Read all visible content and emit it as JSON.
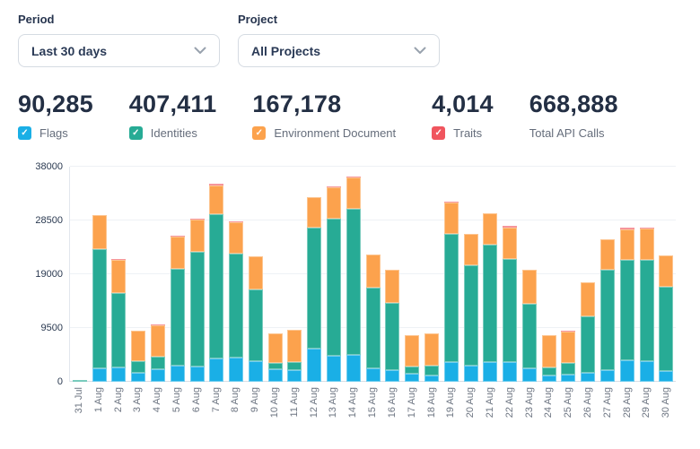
{
  "controls": {
    "period": {
      "label": "Period",
      "value": "Last 30 days"
    },
    "project": {
      "label": "Project",
      "value": "All Projects"
    }
  },
  "stats": [
    {
      "value": "90,285",
      "label": "Flags",
      "checkbox": true,
      "checked": true,
      "color": "#1aafe6"
    },
    {
      "value": "407,411",
      "label": "Identities",
      "checkbox": true,
      "checked": true,
      "color": "#27ab95"
    },
    {
      "value": "167,178",
      "label": "Environment Document",
      "checkbox": true,
      "checked": true,
      "color": "#fca24d"
    },
    {
      "value": "4,014",
      "label": "Traits",
      "checkbox": true,
      "checked": true,
      "color": "#f0555e"
    },
    {
      "value": "668,888",
      "label": "Total API Calls",
      "checkbox": false
    }
  ],
  "icons": {
    "checkmark": "✓",
    "chevron_down": "chevron-down"
  },
  "chart_data": {
    "type": "bar",
    "stacked": true,
    "grid": true,
    "ylim": [
      0,
      38000
    ],
    "yticks": [
      0,
      9500,
      19000,
      28500,
      38000
    ],
    "categories": [
      "31 Jul",
      "1 Aug",
      "2 Aug",
      "3 Aug",
      "4 Aug",
      "5 Aug",
      "6 Aug",
      "7 Aug",
      "8 Aug",
      "9 Aug",
      "10 Aug",
      "11 Aug",
      "12 Aug",
      "13 Aug",
      "14 Aug",
      "15 Aug",
      "16 Aug",
      "17 Aug",
      "18 Aug",
      "19 Aug",
      "20 Aug",
      "21 Aug",
      "22 Aug",
      "23 Aug",
      "24 Aug",
      "25 Aug",
      "26 Aug",
      "27 Aug",
      "28 Aug",
      "29 Aug",
      "30 Aug"
    ],
    "series": [
      {
        "name": "Flags",
        "color": "#1aafe6",
        "values": [
          0,
          2400,
          2500,
          1600,
          2200,
          2900,
          2750,
          4050,
          4300,
          3700,
          2200,
          2050,
          5850,
          4550,
          4700,
          2300,
          2100,
          1400,
          1150,
          3550,
          2850,
          3450,
          3450,
          2300,
          1150,
          1250,
          1600,
          2050,
          3800,
          3650,
          1950
        ]
      },
      {
        "name": "Identities",
        "color": "#27ab95",
        "values": [
          250,
          21100,
          13200,
          2000,
          2200,
          17000,
          20200,
          25600,
          18400,
          12600,
          1200,
          1500,
          21450,
          24300,
          25900,
          14400,
          11800,
          1350,
          1750,
          22550,
          17700,
          20800,
          18300,
          11500,
          1350,
          2150,
          10000,
          17700,
          17700,
          17950,
          14900
        ]
      },
      {
        "name": "Environment Document",
        "color": "#fca24d",
        "values": [
          0,
          5900,
          5900,
          5400,
          5650,
          5700,
          5700,
          5100,
          5450,
          5800,
          5100,
          5700,
          5250,
          5550,
          5550,
          5800,
          5900,
          5550,
          5650,
          5550,
          5600,
          5450,
          5450,
          5950,
          5800,
          5500,
          5950,
          5400,
          5400,
          5450,
          5450
        ]
      },
      {
        "name": "Traits",
        "color": "#f0555e",
        "values": [
          0,
          100,
          100,
          50,
          50,
          150,
          150,
          300,
          150,
          0,
          0,
          0,
          0,
          170,
          100,
          0,
          0,
          0,
          0,
          120,
          0,
          0,
          300,
          0,
          0,
          180,
          100,
          0,
          400,
          200,
          0
        ]
      }
    ]
  }
}
